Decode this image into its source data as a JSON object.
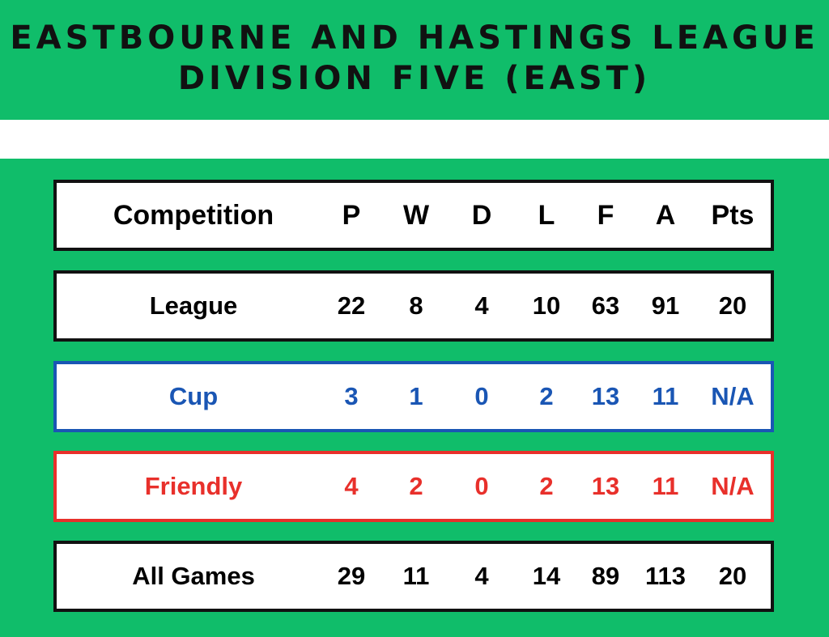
{
  "title": {
    "line1": "EASTBOURNE AND HASTINGS LEAGUE",
    "line2": "DIVISION FIVE (EAST)"
  },
  "colors": {
    "background": "#10bd6a",
    "cup": "#1a56b4",
    "friendly": "#e8302b",
    "default": "#111111"
  },
  "headers": [
    "Competition",
    "P",
    "W",
    "D",
    "L",
    "F",
    "A",
    "Pts"
  ],
  "rows": [
    {
      "cells": [
        "League",
        "22",
        "8",
        "4",
        "10",
        "63",
        "91",
        "20"
      ]
    },
    {
      "cells": [
        "Cup",
        "3",
        "1",
        "0",
        "2",
        "13",
        "11",
        "N/A"
      ]
    },
    {
      "cells": [
        "Friendly",
        "4",
        "2",
        "0",
        "2",
        "13",
        "11",
        "N/A"
      ]
    },
    {
      "cells": [
        "All Games",
        "29",
        "11",
        "4",
        "14",
        "89",
        "113",
        "20"
      ]
    }
  ]
}
